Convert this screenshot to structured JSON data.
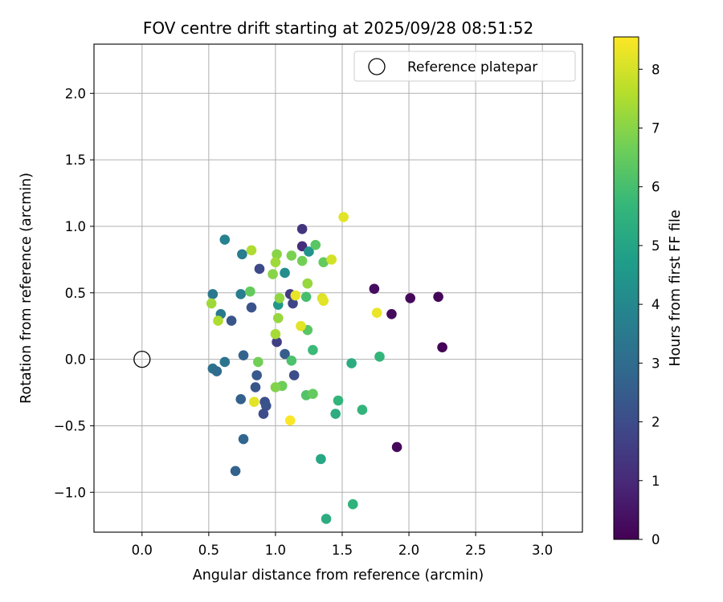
{
  "chart_data": {
    "type": "scatter",
    "title": "FOV centre drift starting at 2025/09/28 08:51:52",
    "xlabel": "Angular distance from reference (arcmin)",
    "ylabel": "Rotation from reference (arcmin)",
    "xlim": [
      -0.36,
      3.3
    ],
    "ylim": [
      -1.3,
      2.37
    ],
    "xticks": [
      0.0,
      0.5,
      1.0,
      1.5,
      2.0,
      2.5,
      3.0
    ],
    "xtick_labels": [
      "0.0",
      "0.5",
      "1.0",
      "1.5",
      "2.0",
      "2.5",
      "3.0"
    ],
    "yticks": [
      -1.0,
      -0.5,
      0.0,
      0.5,
      1.0,
      1.5,
      2.0
    ],
    "ytick_labels": [
      "−1.0",
      "−0.5",
      "0.0",
      "0.5",
      "1.0",
      "1.5",
      "2.0"
    ],
    "grid": true,
    "legend": {
      "position": "top-right",
      "label": "Reference platepar"
    },
    "reference_point": {
      "x": 0.0,
      "y": 0.0
    },
    "colorbar": {
      "label": "Hours from first FF file",
      "range": [
        0,
        8.55
      ],
      "ticks": [
        0,
        1,
        2,
        3,
        4,
        5,
        6,
        7,
        8
      ],
      "tick_labels": [
        "0",
        "1",
        "2",
        "3",
        "4",
        "5",
        "6",
        "7",
        "8"
      ],
      "colormap": [
        "#440154",
        "#482878",
        "#3e4989",
        "#31688e",
        "#26828e",
        "#1f9e89",
        "#35b779",
        "#6ece58",
        "#b5de2b",
        "#fde725"
      ]
    },
    "points": [
      {
        "x": 1.74,
        "y": 0.53,
        "hours": 0.3
      },
      {
        "x": 2.01,
        "y": 0.46,
        "hours": 0.2
      },
      {
        "x": 2.22,
        "y": 0.47,
        "hours": 0.1
      },
      {
        "x": 1.87,
        "y": 0.34,
        "hours": 0.25
      },
      {
        "x": 2.25,
        "y": 0.09,
        "hours": 0.05
      },
      {
        "x": 1.91,
        "y": -0.66,
        "hours": 0.2
      },
      {
        "x": 1.2,
        "y": 0.98,
        "hours": 1.3
      },
      {
        "x": 1.2,
        "y": 0.85,
        "hours": 1.1
      },
      {
        "x": 1.11,
        "y": 0.49,
        "hours": 1.5
      },
      {
        "x": 1.13,
        "y": 0.42,
        "hours": 1.8
      },
      {
        "x": 0.88,
        "y": 0.68,
        "hours": 1.9
      },
      {
        "x": 1.01,
        "y": 0.13,
        "hours": 1.6
      },
      {
        "x": 0.82,
        "y": 0.39,
        "hours": 2.2
      },
      {
        "x": 0.67,
        "y": 0.29,
        "hours": 2.3
      },
      {
        "x": 1.14,
        "y": -0.12,
        "hours": 2.0
      },
      {
        "x": 0.86,
        "y": -0.12,
        "hours": 2.4
      },
      {
        "x": 0.85,
        "y": -0.21,
        "hours": 2.3
      },
      {
        "x": 0.92,
        "y": -0.32,
        "hours": 2.1
      },
      {
        "x": 0.93,
        "y": -0.35,
        "hours": 2.2
      },
      {
        "x": 0.91,
        "y": -0.41,
        "hours": 2.0
      },
      {
        "x": 0.74,
        "y": -0.3,
        "hours": 2.6
      },
      {
        "x": 0.7,
        "y": -0.84,
        "hours": 2.7
      },
      {
        "x": 0.76,
        "y": -0.6,
        "hours": 2.8
      },
      {
        "x": 0.76,
        "y": 0.03,
        "hours": 2.7
      },
      {
        "x": 1.07,
        "y": 0.04,
        "hours": 2.5
      },
      {
        "x": 0.53,
        "y": -0.07,
        "hours": 3.2
      },
      {
        "x": 0.56,
        "y": -0.09,
        "hours": 3.0
      },
      {
        "x": 0.62,
        "y": -0.02,
        "hours": 3.3
      },
      {
        "x": 0.53,
        "y": 0.49,
        "hours": 3.4
      },
      {
        "x": 0.59,
        "y": 0.34,
        "hours": 3.5
      },
      {
        "x": 0.74,
        "y": 0.49,
        "hours": 3.6
      },
      {
        "x": 0.75,
        "y": 0.79,
        "hours": 3.6
      },
      {
        "x": 0.62,
        "y": 0.9,
        "hours": 3.8
      },
      {
        "x": 1.07,
        "y": 0.65,
        "hours": 4.2
      },
      {
        "x": 1.25,
        "y": 0.81,
        "hours": 4.4
      },
      {
        "x": 1.02,
        "y": 0.41,
        "hours": 4.5
      },
      {
        "x": 1.34,
        "y": -0.75,
        "hours": 5.1
      },
      {
        "x": 1.38,
        "y": -1.2,
        "hours": 5.3
      },
      {
        "x": 1.58,
        "y": -1.09,
        "hours": 5.5
      },
      {
        "x": 1.45,
        "y": -0.41,
        "hours": 5.3
      },
      {
        "x": 1.47,
        "y": -0.31,
        "hours": 5.6
      },
      {
        "x": 1.65,
        "y": -0.38,
        "hours": 5.6
      },
      {
        "x": 1.57,
        "y": -0.03,
        "hours": 5.3
      },
      {
        "x": 1.78,
        "y": 0.02,
        "hours": 5.6
      },
      {
        "x": 1.28,
        "y": 0.07,
        "hours": 5.8
      },
      {
        "x": 1.24,
        "y": 0.22,
        "hours": 6.3
      },
      {
        "x": 1.23,
        "y": 0.47,
        "hours": 6.0
      },
      {
        "x": 1.24,
        "y": 0.57,
        "hours": 6.5
      },
      {
        "x": 1.12,
        "y": -0.01,
        "hours": 6.1
      },
      {
        "x": 1.23,
        "y": -0.27,
        "hours": 6.2
      },
      {
        "x": 1.28,
        "y": -0.26,
        "hours": 6.5
      },
      {
        "x": 1.05,
        "y": -0.2,
        "hours": 6.6
      },
      {
        "x": 1.0,
        "y": -0.21,
        "hours": 6.9
      },
      {
        "x": 0.87,
        "y": -0.02,
        "hours": 6.7
      },
      {
        "x": 1.3,
        "y": 0.86,
        "hours": 6.3
      },
      {
        "x": 1.36,
        "y": 0.73,
        "hours": 6.5
      },
      {
        "x": 1.2,
        "y": 0.74,
        "hours": 6.7
      },
      {
        "x": 1.12,
        "y": 0.78,
        "hours": 6.8
      },
      {
        "x": 1.01,
        "y": 0.79,
        "hours": 7.0
      },
      {
        "x": 0.81,
        "y": 0.51,
        "hours": 6.5
      },
      {
        "x": 0.98,
        "y": 0.64,
        "hours": 7.0
      },
      {
        "x": 1.0,
        "y": 0.73,
        "hours": 7.3
      },
      {
        "x": 1.03,
        "y": 0.46,
        "hours": 7.1
      },
      {
        "x": 1.02,
        "y": 0.31,
        "hours": 7.2
      },
      {
        "x": 1.0,
        "y": 0.19,
        "hours": 7.4
      },
      {
        "x": 0.82,
        "y": 0.82,
        "hours": 7.5
      },
      {
        "x": 0.52,
        "y": 0.42,
        "hours": 7.3
      },
      {
        "x": 0.57,
        "y": 0.29,
        "hours": 7.5
      },
      {
        "x": 1.24,
        "y": 0.57,
        "hours": 7.2
      },
      {
        "x": 1.42,
        "y": 0.75,
        "hours": 8.0
      },
      {
        "x": 1.35,
        "y": 0.46,
        "hours": 8.1
      },
      {
        "x": 1.36,
        "y": 0.44,
        "hours": 8.2
      },
      {
        "x": 1.15,
        "y": 0.48,
        "hours": 8.3
      },
      {
        "x": 1.19,
        "y": 0.25,
        "hours": 8.2
      },
      {
        "x": 1.76,
        "y": 0.35,
        "hours": 8.3
      },
      {
        "x": 0.84,
        "y": -0.32,
        "hours": 8.2
      },
      {
        "x": 1.11,
        "y": -0.46,
        "hours": 8.5
      },
      {
        "x": 1.51,
        "y": 1.07,
        "hours": 8.2
      }
    ]
  }
}
